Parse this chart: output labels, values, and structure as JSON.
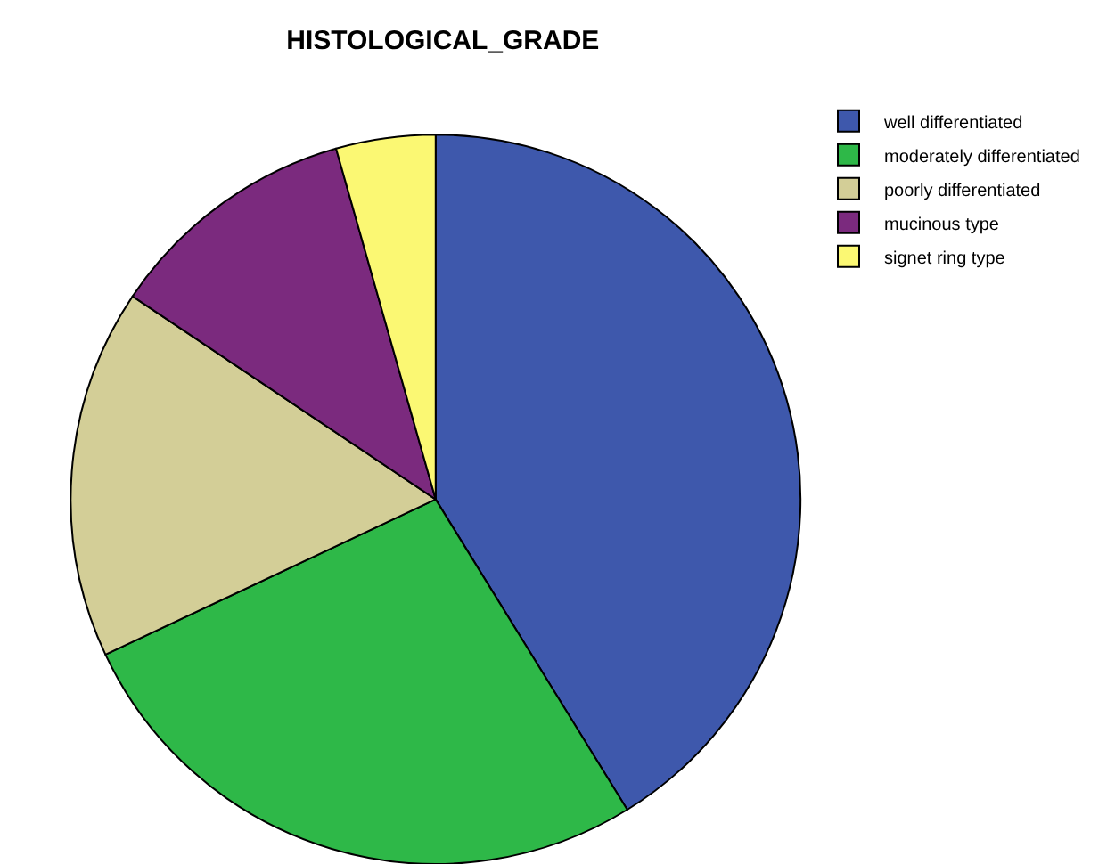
{
  "chart_data": {
    "type": "pie",
    "title": "HISTOLOGICAL_GRADE",
    "categories": [
      "well differentiated",
      "moderately differentiated",
      "poorly differentiated",
      "mucinous type",
      "signet ring type"
    ],
    "values": [
      41.2,
      26.8,
      16.4,
      11.2,
      4.4
    ],
    "colors": [
      "#3e58ac",
      "#2eb848",
      "#d3ce97",
      "#7b2a7e",
      "#fbf873"
    ],
    "legend": "top right"
  }
}
